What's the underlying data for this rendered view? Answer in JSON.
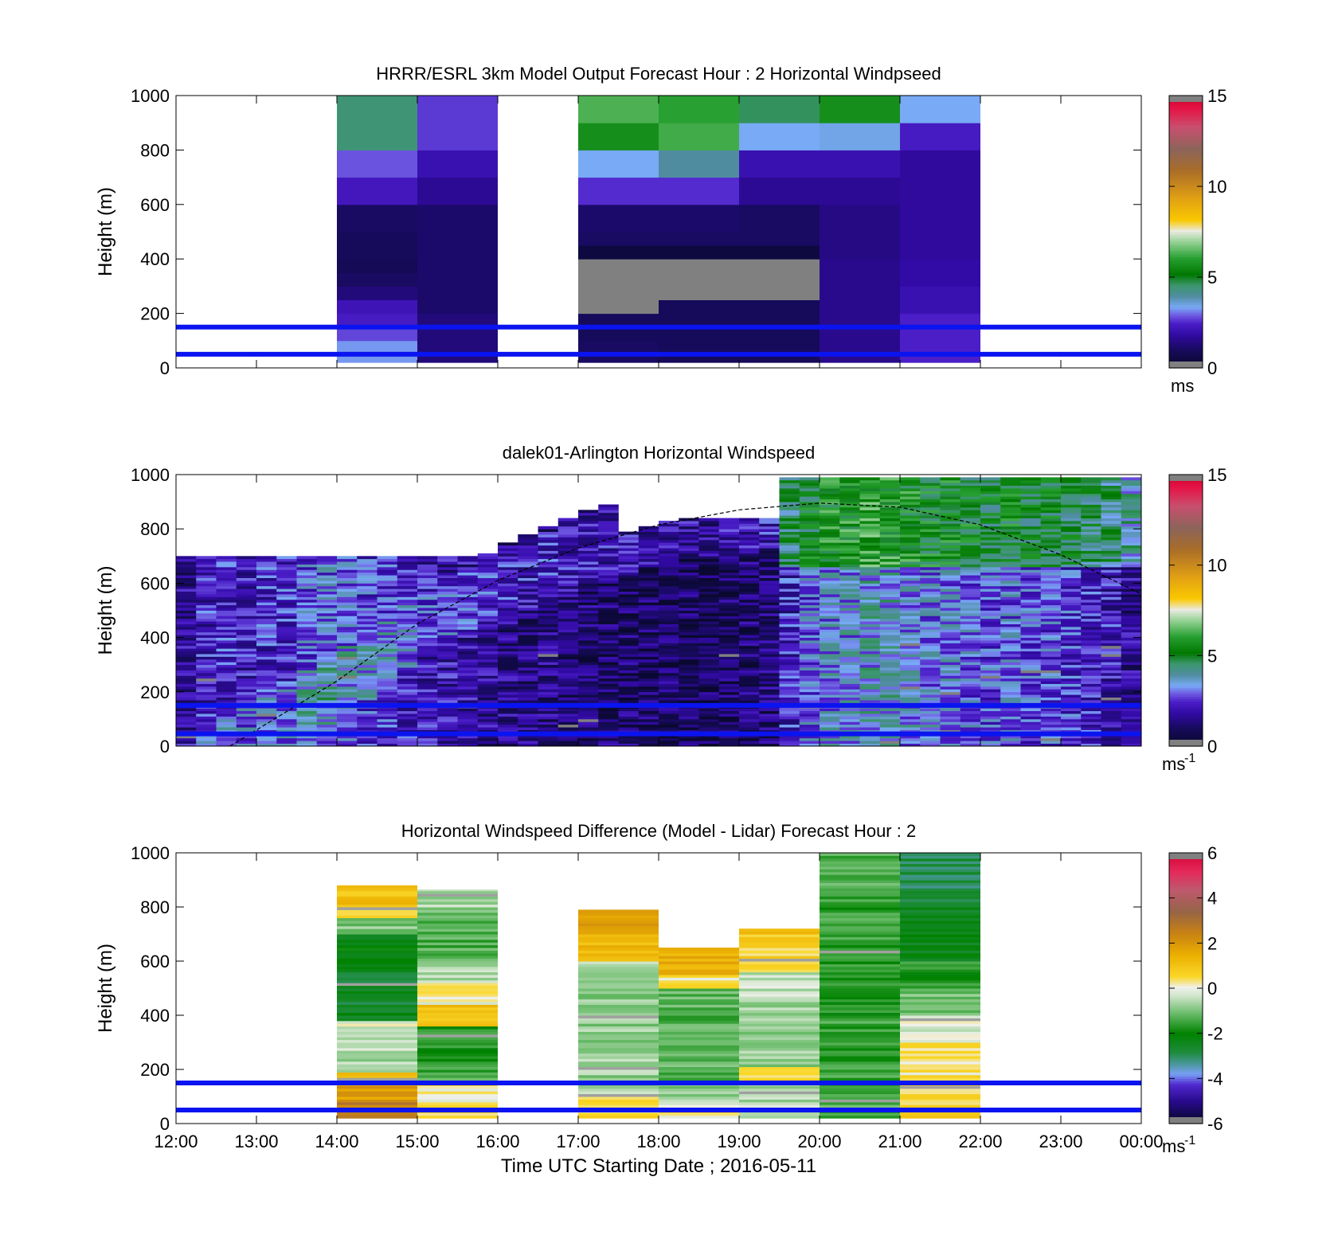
{
  "figure": {
    "xlabel": "Time UTC  Starting Date ; 2016-05-11",
    "x_tick_labels": [
      "12:00",
      "13:00",
      "14:00",
      "15:00",
      "16:00",
      "17:00",
      "18:00",
      "19:00",
      "20:00",
      "21:00",
      "22:00",
      "23:00",
      "00:00"
    ],
    "y_tick_labels": [
      "0",
      "200",
      "400",
      "600",
      "800",
      "1000"
    ],
    "ylabel": "Height (m)",
    "colors": {
      "reference_line": "#0a14f0",
      "missing": "#808080"
    }
  },
  "panels": [
    {
      "title": "HRRR/ESRL 3km Model Output   Forecast Hour : 2 Horizontal Windpseed",
      "colorbar": {
        "ticks": [
          "0",
          "5",
          "10",
          "15"
        ],
        "unit": "ms",
        "unit_sup": ""
      }
    },
    {
      "title": "dalek01-Arlington  Horizontal Windspeed",
      "colorbar": {
        "ticks": [
          "0",
          "5",
          "10",
          "15"
        ],
        "unit": "ms",
        "unit_sup": "-1"
      }
    },
    {
      "title": "Horizontal Windspeed Difference (Model - Lidar) Forecast Hour : 2",
      "colorbar": {
        "ticks": [
          "-6",
          "-4",
          "-2",
          "0",
          "2",
          "4",
          "6"
        ],
        "unit": "ms",
        "unit_sup": "-1"
      }
    }
  ],
  "chart_data": [
    {
      "type": "heatmap",
      "title": "HRRR/ESRL 3km Model Output   Forecast Hour : 2 Horizontal Windpseed",
      "xlabel": "",
      "ylabel": "Height (m)",
      "x_unit": "hour UTC",
      "xlim": [
        12,
        24
      ],
      "ylim": [
        0,
        1000
      ],
      "clim": [
        0,
        15
      ],
      "colorbar_label": "ms",
      "hlines": [
        50,
        150
      ],
      "columns": [
        {
          "t0": 14,
          "t1": 15,
          "bins": [
            [
              20,
              40,
              3.2
            ],
            [
              40,
              60,
              3.2
            ],
            [
              60,
              100,
              3.2
            ],
            [
              100,
              150,
              2.7
            ],
            [
              150,
              200,
              2.3
            ],
            [
              200,
              250,
              2.1
            ],
            [
              250,
              300,
              1.3
            ],
            [
              300,
              350,
              1.0
            ],
            [
              350,
              400,
              0.8
            ],
            [
              400,
              500,
              0.9
            ],
            [
              500,
              600,
              1.0
            ],
            [
              600,
              700,
              2.2
            ],
            [
              700,
              800,
              2.8
            ],
            [
              800,
              1000,
              4.4
            ]
          ]
        },
        {
          "t0": 15,
          "t1": 16,
          "bins": [
            [
              20,
              200,
              1.3
            ],
            [
              200,
              400,
              1.1
            ],
            [
              400,
              600,
              1.1
            ],
            [
              600,
              700,
              1.6
            ],
            [
              700,
              800,
              2.0
            ],
            [
              800,
              1000,
              2.6
            ]
          ]
        },
        {
          "t0": 17,
          "t1": 18,
          "bins": [
            [
              20,
              100,
              1.0
            ],
            [
              100,
              200,
              0.9
            ],
            [
              200,
              400,
              null
            ],
            [
              400,
              450,
              0.4
            ],
            [
              450,
              500,
              1.0
            ],
            [
              500,
              600,
              1.1
            ],
            [
              600,
              700,
              2.5
            ],
            [
              700,
              800,
              3.3
            ],
            [
              800,
              900,
              5.6
            ],
            [
              900,
              1000,
              6.3
            ]
          ]
        },
        {
          "t0": 18,
          "t1": 19,
          "bins": [
            [
              20,
              250,
              0.9
            ],
            [
              250,
              400,
              null
            ],
            [
              400,
              450,
              0.4
            ],
            [
              450,
              500,
              1.0
            ],
            [
              500,
              600,
              1.1
            ],
            [
              600,
              700,
              2.5
            ],
            [
              700,
              800,
              3.9
            ],
            [
              800,
              900,
              6.2
            ],
            [
              900,
              1000,
              6.0
            ]
          ]
        },
        {
          "t0": 19,
          "t1": 20,
          "bins": [
            [
              20,
              250,
              0.9
            ],
            [
              250,
              400,
              null
            ],
            [
              400,
              450,
              0.4
            ],
            [
              450,
              500,
              1.0
            ],
            [
              500,
              600,
              1.0
            ],
            [
              600,
              700,
              1.6
            ],
            [
              700,
              800,
              2.0
            ],
            [
              800,
              900,
              3.3
            ],
            [
              900,
              1000,
              4.6
            ]
          ]
        },
        {
          "t0": 20,
          "t1": 21,
          "bins": [
            [
              20,
              400,
              1.5
            ],
            [
              400,
              600,
              1.4
            ],
            [
              600,
              700,
              1.6
            ],
            [
              700,
              800,
              2.0
            ],
            [
              800,
              900,
              3.4
            ],
            [
              900,
              1000,
              5.6
            ]
          ]
        },
        {
          "t0": 21,
          "t1": 22,
          "bins": [
            [
              20,
              200,
              2.4
            ],
            [
              200,
              300,
              2.0
            ],
            [
              300,
              400,
              1.8
            ],
            [
              400,
              600,
              1.7
            ],
            [
              600,
              800,
              1.7
            ],
            [
              800,
              900,
              2.3
            ],
            [
              900,
              1000,
              3.3
            ]
          ]
        }
      ]
    },
    {
      "type": "heatmap",
      "title": "dalek01-Arlington  Horizontal Windspeed",
      "xlabel": "",
      "ylabel": "Height (m)",
      "x_unit": "hour UTC",
      "xlim": [
        12,
        24
      ],
      "ylim": [
        0,
        1000
      ],
      "clim": [
        0,
        15
      ],
      "colorbar_label": "ms-1",
      "hlines": [
        45,
        150
      ],
      "reference_curve": [
        [
          12.67,
          0
        ],
        [
          14,
          240
        ],
        [
          15,
          450
        ],
        [
          16,
          610
        ],
        [
          17,
          730
        ],
        [
          18,
          815
        ],
        [
          19,
          870
        ],
        [
          20,
          895
        ],
        [
          21,
          880
        ],
        [
          22,
          815
        ],
        [
          23,
          705
        ],
        [
          24,
          560
        ]
      ],
      "column_width_hours": 0.25,
      "column_means": [
        [
          12.0,
          1.6
        ],
        [
          12.25,
          2.2
        ],
        [
          12.5,
          2.3
        ],
        [
          12.75,
          2.1
        ],
        [
          13.0,
          2.3
        ],
        [
          13.25,
          2.4
        ],
        [
          13.5,
          2.8
        ],
        [
          13.75,
          3.0
        ],
        [
          14.0,
          2.8
        ],
        [
          14.25,
          2.6
        ],
        [
          14.5,
          2.7
        ],
        [
          14.75,
          2.3
        ],
        [
          15.0,
          2.0
        ],
        [
          15.25,
          1.9
        ],
        [
          15.5,
          1.8
        ],
        [
          15.75,
          1.6
        ],
        [
          16.0,
          1.5
        ],
        [
          16.25,
          1.4
        ],
        [
          16.5,
          1.4
        ],
        [
          16.75,
          1.3
        ],
        [
          17.0,
          1.2
        ],
        [
          17.25,
          1.1
        ],
        [
          17.5,
          1.1
        ],
        [
          17.75,
          1.0
        ],
        [
          18.0,
          1.0
        ],
        [
          18.25,
          0.9
        ],
        [
          18.5,
          0.9
        ],
        [
          18.75,
          1.0
        ],
        [
          19.0,
          1.1
        ],
        [
          19.25,
          1.3
        ],
        [
          19.5,
          2.2
        ],
        [
          19.75,
          2.8
        ],
        [
          20.0,
          3.3
        ],
        [
          20.25,
          3.4
        ],
        [
          20.5,
          3.6
        ],
        [
          20.75,
          3.6
        ],
        [
          21.0,
          3.3
        ],
        [
          21.25,
          3.1
        ],
        [
          21.5,
          3.1
        ],
        [
          21.75,
          2.9
        ],
        [
          22.0,
          2.7
        ],
        [
          22.25,
          2.9
        ],
        [
          22.5,
          2.7
        ],
        [
          22.75,
          2.7
        ],
        [
          23.0,
          2.5
        ],
        [
          23.25,
          2.3
        ],
        [
          23.5,
          2.1
        ],
        [
          23.75,
          1.6
        ]
      ]
    },
    {
      "type": "heatmap",
      "title": "Horizontal Windspeed Difference (Model - Lidar) Forecast Hour : 2",
      "xlabel": "Time UTC  Starting Date ; 2016-05-11",
      "ylabel": "Height (m)",
      "x_unit": "hour UTC",
      "xlim": [
        12,
        24
      ],
      "ylim": [
        0,
        1000
      ],
      "clim": [
        -6,
        6
      ],
      "colorbar_label": "ms-1",
      "hlines": [
        50,
        150
      ],
      "columns": [
        {
          "t0": 14,
          "t1": 15,
          "bins": [
            [
              20,
              80,
              2.5
            ],
            [
              80,
              150,
              1.8
            ],
            [
              150,
              190,
              1.0
            ],
            [
              190,
              320,
              -0.6
            ],
            [
              320,
              380,
              -0.2
            ],
            [
              380,
              420,
              -2.4
            ],
            [
              420,
              560,
              -2.6
            ],
            [
              560,
              700,
              -2.2
            ],
            [
              700,
              760,
              -1.0
            ],
            [
              760,
              800,
              0.4
            ],
            [
              800,
              880,
              1.0
            ]
          ]
        },
        {
          "t0": 15,
          "t1": 16,
          "bins": [
            [
              20,
              60,
              0.5
            ],
            [
              60,
              150,
              0.2
            ],
            [
              150,
              220,
              -1.5
            ],
            [
              220,
              360,
              -1.8
            ],
            [
              360,
              440,
              1.0
            ],
            [
              440,
              520,
              0.1
            ],
            [
              520,
              600,
              -0.6
            ],
            [
              600,
              700,
              -1.4
            ],
            [
              700,
              800,
              -1.2
            ],
            [
              800,
              865,
              -0.6
            ]
          ]
        },
        {
          "t0": 17,
          "t1": 18,
          "bins": [
            [
              20,
              60,
              0.6
            ],
            [
              60,
              100,
              0.4
            ],
            [
              100,
              150,
              -0.6
            ],
            [
              150,
              600,
              -0.8
            ],
            [
              600,
              700,
              1.2
            ],
            [
              700,
              790,
              2.0
            ]
          ]
        },
        {
          "t0": 18,
          "t1": 19,
          "bins": [
            [
              20,
              60,
              0.3
            ],
            [
              60,
              100,
              -0.3
            ],
            [
              100,
              150,
              -0.8
            ],
            [
              150,
              500,
              -1.3
            ],
            [
              500,
              550,
              0.3
            ],
            [
              550,
              650,
              1.4
            ]
          ]
        },
        {
          "t0": 19,
          "t1": 20,
          "bins": [
            [
              20,
              80,
              -0.3
            ],
            [
              80,
              150,
              -0.6
            ],
            [
              150,
              210,
              0.5
            ],
            [
              210,
              450,
              -0.8
            ],
            [
              450,
              560,
              -0.4
            ],
            [
              560,
              700,
              0.6
            ],
            [
              700,
              720,
              1.3
            ]
          ]
        },
        {
          "t0": 20,
          "t1": 21,
          "bins": [
            [
              20,
              150,
              -1.4
            ],
            [
              150,
              400,
              -1.6
            ],
            [
              400,
              600,
              -1.8
            ],
            [
              600,
              800,
              -1.6
            ],
            [
              800,
              1000,
              -1.4
            ]
          ]
        },
        {
          "t0": 21,
          "t1": 22,
          "bins": [
            [
              20,
              70,
              0.7
            ],
            [
              70,
              150,
              0.6
            ],
            [
              150,
              220,
              0.3
            ],
            [
              220,
              300,
              0.2
            ],
            [
              300,
              400,
              -0.2
            ],
            [
              400,
              500,
              -1.0
            ],
            [
              500,
              600,
              -1.8
            ],
            [
              600,
              800,
              -2.4
            ],
            [
              800,
              1000,
              -2.9
            ]
          ]
        }
      ]
    }
  ]
}
